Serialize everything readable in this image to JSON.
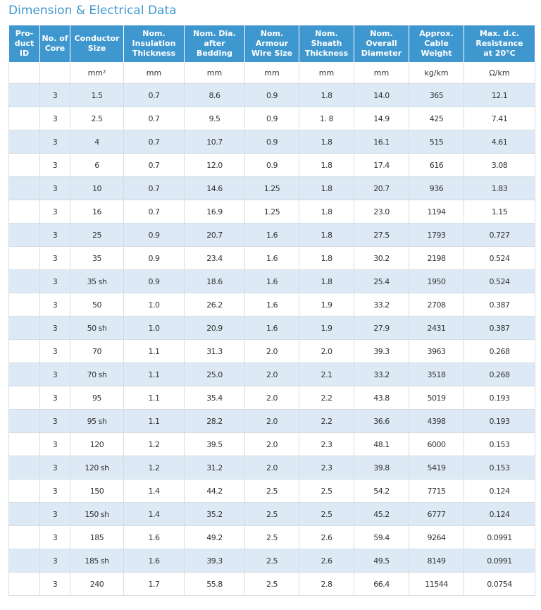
{
  "page": {
    "title": "Dimension & Electrical Data"
  },
  "table": {
    "headers": [
      "Pro-\nduct\nID",
      "No. of\nCore",
      "Conductor\nSize",
      "Nom.\nInsulation\nThickness",
      "Nom. Dia.\nafter\nBedding",
      "Nom.\nArmour\nWire Size",
      "Nom.\nSheath\nThickness",
      "Nom.\nOverall\nDiameter",
      "Approx.\nCable\nWeight",
      "Max. d.c.\nResistance\nat 20°C"
    ],
    "units": [
      "",
      "",
      "mm²",
      "mm",
      "mm",
      "mm",
      "mm",
      "mm",
      "kg/km",
      "Ω/km"
    ],
    "rows": [
      [
        "",
        "3",
        "1.5",
        "0.7",
        "8.6",
        "0.9",
        "1.8",
        "14.0",
        "365",
        "12.1"
      ],
      [
        "",
        "3",
        "2.5",
        "0.7",
        "9.5",
        "0.9",
        "1. 8",
        "14.9",
        "425",
        "7.41"
      ],
      [
        "",
        "3",
        "4",
        "0.7",
        "10.7",
        "0.9",
        "1.8",
        "16.1",
        "515",
        "4.61"
      ],
      [
        "",
        "3",
        "6",
        "0.7",
        "12.0",
        "0.9",
        "1.8",
        "17.4",
        "616",
        "3.08"
      ],
      [
        "",
        "3",
        "10",
        "0.7",
        "14.6",
        "1.25",
        "1.8",
        "20.7",
        "936",
        "1.83"
      ],
      [
        "",
        "3",
        "16",
        "0.7",
        "16.9",
        "1.25",
        "1.8",
        "23.0",
        "1194",
        "1.15"
      ],
      [
        "",
        "3",
        "25",
        "0.9",
        "20.7",
        "1.6",
        "1.8",
        "27.5",
        "1793",
        "0.727"
      ],
      [
        "",
        "3",
        "35",
        "0.9",
        "23.4",
        "1.6",
        "1.8",
        "30.2",
        "2198",
        "0.524"
      ],
      [
        "",
        "3",
        "35 sh",
        "0.9",
        "18.6",
        "1.6",
        "1.8",
        "25.4",
        "1950",
        "0.524"
      ],
      [
        "",
        "3",
        "50",
        "1.0",
        "26.2",
        "1.6",
        "1.9",
        "33.2",
        "2708",
        "0.387"
      ],
      [
        "",
        "3",
        "50 sh",
        "1.0",
        "20.9",
        "1.6",
        "1.9",
        "27.9",
        "2431",
        "0.387"
      ],
      [
        "",
        "3",
        "70",
        "1.1",
        "31.3",
        "2.0",
        "2.0",
        "39.3",
        "3963",
        "0.268"
      ],
      [
        "",
        "3",
        "70 sh",
        "1.1",
        "25.0",
        "2.0",
        "2.1",
        "33.2",
        "3518",
        "0.268"
      ],
      [
        "",
        "3",
        "95",
        "1.1",
        "35.4",
        "2.0",
        "2.2",
        "43.8",
        "5019",
        "0.193"
      ],
      [
        "",
        "3",
        "95 sh",
        "1.1",
        "28.2",
        "2.0",
        "2.2",
        "36.6",
        "4398",
        "0.193"
      ],
      [
        "",
        "3",
        "120",
        "1.2",
        "39.5",
        "2.0",
        "2.3",
        "48.1",
        "6000",
        "0.153"
      ],
      [
        "",
        "3",
        "120 sh",
        "1.2",
        "31.2",
        "2.0",
        "2.3",
        "39.8",
        "5419",
        "0.153"
      ],
      [
        "",
        "3",
        "150",
        "1.4",
        "44.2",
        "2.5",
        "2.5",
        "54.2",
        "7715",
        "0.124"
      ],
      [
        "",
        "3",
        "150 sh",
        "1.4",
        "35.2",
        "2.5",
        "2.5",
        "45.2",
        "6777",
        "0.124"
      ],
      [
        "",
        "3",
        "185",
        "1.6",
        "49.2",
        "2.5",
        "2.6",
        "59.4",
        "9264",
        "0.0991"
      ],
      [
        "",
        "3",
        "185 sh",
        "1.6",
        "39.3",
        "2.5",
        "2.6",
        "49.5",
        "8149",
        "0.0991"
      ],
      [
        "",
        "3",
        "240",
        "1.7",
        "55.8",
        "2.5",
        "2.8",
        "66.4",
        "11544",
        "0.0754"
      ]
    ]
  },
  "colors": {
    "header_bg": "#3f97cf",
    "stripe": "#dde9f5",
    "title": "#3f97cf"
  }
}
